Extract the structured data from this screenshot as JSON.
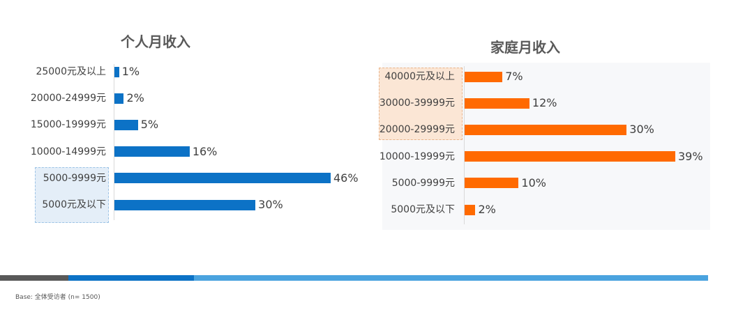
{
  "colors": {
    "personal_bar": "#0c72c6",
    "family_bar": "#ff6a00",
    "personal_highlight": "#e4eef8",
    "family_highlight": "#fbe6d5",
    "stripe_dark": "#595959",
    "stripe_mid": "#0c72c6",
    "stripe_light": "#4aa3df"
  },
  "chart_data": [
    {
      "type": "bar",
      "orientation": "horizontal",
      "title": "个人月收入",
      "categories": [
        "25000元及以上",
        "20000-24999元",
        "15000-19999元",
        "10000-14999元",
        "5000-9999元",
        "5000元及以下"
      ],
      "values": [
        1,
        2,
        5,
        16,
        46,
        30
      ],
      "value_labels": [
        "1%",
        "2%",
        "5%",
        "16%",
        "46%",
        "30%"
      ],
      "unit": "%",
      "xlim": [
        0,
        46
      ],
      "highlighted_categories": [
        "5000-9999元",
        "5000元及以下"
      ]
    },
    {
      "type": "bar",
      "orientation": "horizontal",
      "title": "家庭月收入",
      "categories": [
        "40000元及以上",
        "30000-39999元",
        "20000-29999元",
        "10000-19999元",
        "5000-9999元",
        "5000元及以下"
      ],
      "values": [
        7,
        12,
        30,
        39,
        10,
        2
      ],
      "value_labels": [
        "7%",
        "12%",
        "30%",
        "39%",
        "10%",
        "2%"
      ],
      "unit": "%",
      "xlim": [
        0,
        39
      ],
      "highlighted_categories": [
        "40000元及以上",
        "30000-39999元",
        "20000-29999元"
      ]
    }
  ],
  "footnote": "Base: 全体受访者 (n= 1500)"
}
